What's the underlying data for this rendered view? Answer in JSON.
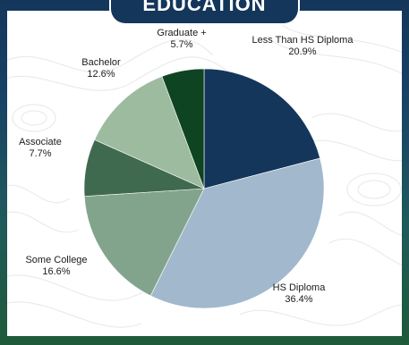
{
  "header": {
    "title": "EDUCATION"
  },
  "chart_data": {
    "type": "pie",
    "title": "EDUCATION",
    "slices": [
      {
        "label": "Less Than HS Diploma",
        "value": 20.9,
        "display": "20.9%",
        "color": "#14365a"
      },
      {
        "label": "HS Diploma",
        "value": 36.4,
        "display": "36.4%",
        "color": "#a2b8cc"
      },
      {
        "label": "Some College",
        "value": 16.6,
        "display": "16.6%",
        "color": "#82a48c"
      },
      {
        "label": "Associate",
        "value": 7.7,
        "display": "7.7%",
        "color": "#3f6a4f"
      },
      {
        "label": "Bachelor",
        "value": 12.6,
        "display": "12.6%",
        "color": "#9dbc9f"
      },
      {
        "label": "Graduate +",
        "value": 5.7,
        "display": "5.7%",
        "color": "#0f4422"
      }
    ]
  }
}
